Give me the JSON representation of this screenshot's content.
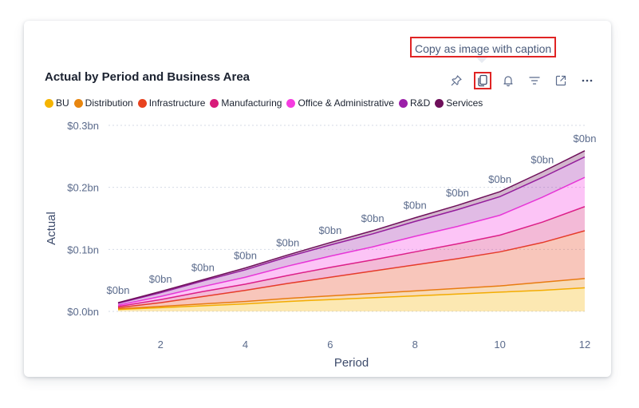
{
  "tooltip": {
    "text": "Copy as image with caption"
  },
  "toolbar": {
    "icons": [
      "pin-icon",
      "copy-icon",
      "bell-icon",
      "filter-icon",
      "expand-icon",
      "more-icon"
    ],
    "highlighted": "copy-icon"
  },
  "chart_data": {
    "type": "area",
    "stacked": true,
    "title": "Actual by Period and Business Area",
    "xlabel": "Period",
    "ylabel": "Actual",
    "x": [
      1,
      2,
      3,
      4,
      5,
      6,
      7,
      8,
      9,
      10,
      11,
      12
    ],
    "xticks": [
      2,
      4,
      6,
      8,
      10,
      12
    ],
    "xlim": [
      1,
      12
    ],
    "yticks": [
      {
        "value": 0.0,
        "label": "$0.0bn"
      },
      {
        "value": 0.1,
        "label": "$0.1bn"
      },
      {
        "value": 0.2,
        "label": "$0.2bn"
      },
      {
        "value": 0.3,
        "label": "$0.3bn"
      }
    ],
    "ylim": [
      0,
      0.3
    ],
    "grid": true,
    "legend_position": "top-left",
    "data_label_text": "$0bn",
    "series": [
      {
        "name": "BU",
        "color": "#f5b400",
        "values": [
          0.003,
          0.006,
          0.009,
          0.012,
          0.016,
          0.019,
          0.022,
          0.025,
          0.028,
          0.031,
          0.034,
          0.038
        ]
      },
      {
        "name": "Distribution",
        "color": "#e8860f",
        "values": [
          0.001,
          0.002,
          0.003,
          0.004,
          0.005,
          0.006,
          0.007,
          0.008,
          0.009,
          0.01,
          0.013,
          0.015
        ]
      },
      {
        "name": "Infrastructure",
        "color": "#e8421e",
        "values": [
          0.002,
          0.006,
          0.012,
          0.018,
          0.024,
          0.03,
          0.036,
          0.042,
          0.048,
          0.055,
          0.064,
          0.077
        ]
      },
      {
        "name": "Manufacturing",
        "color": "#d81b7a",
        "values": [
          0.002,
          0.005,
          0.008,
          0.01,
          0.013,
          0.016,
          0.018,
          0.021,
          0.024,
          0.027,
          0.033,
          0.039
        ]
      },
      {
        "name": "Office & Administrative",
        "color": "#f53ce0",
        "values": [
          0.002,
          0.005,
          0.008,
          0.011,
          0.015,
          0.018,
          0.021,
          0.025,
          0.028,
          0.032,
          0.04,
          0.047
        ]
      },
      {
        "name": "R&D",
        "color": "#9b1fa8",
        "values": [
          0.003,
          0.006,
          0.009,
          0.012,
          0.015,
          0.018,
          0.021,
          0.024,
          0.027,
          0.03,
          0.032,
          0.033
        ]
      },
      {
        "name": "Services",
        "color": "#6e0f5a",
        "values": [
          0.001,
          0.002,
          0.002,
          0.003,
          0.003,
          0.004,
          0.005,
          0.006,
          0.007,
          0.008,
          0.009,
          0.01
        ]
      }
    ]
  }
}
